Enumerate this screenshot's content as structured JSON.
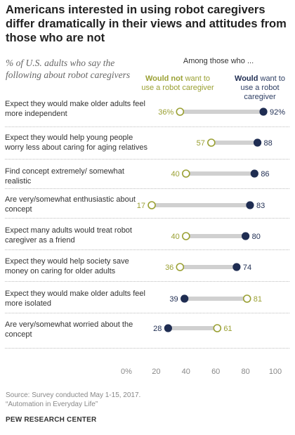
{
  "title": "Americans interested in using robot caregivers differ dramatically in their views and attitudes from those who are not",
  "subtitle": "% of U.S. adults who say the following about robot caregivers",
  "header": "Among those who ...",
  "legend": {
    "not_bold": "Would not",
    "not_rest": "want to use a robot caregiver",
    "would_bold": "Would",
    "would_rest": "want to use a robot caregiver"
  },
  "colors": {
    "would_not": "#9aa033",
    "would": "#1f2d52",
    "track": "#d0d0d0"
  },
  "chart_data": {
    "type": "dot",
    "xlim": [
      0,
      100
    ],
    "xticks": [
      "0%",
      "20",
      "40",
      "60",
      "80",
      "100"
    ],
    "series": [
      {
        "name": "Would not want to use a robot caregiver",
        "style": "hollow"
      },
      {
        "name": "Would want to use a robot caregiver",
        "style": "filled"
      }
    ],
    "rows": [
      {
        "label": "Expect they would make older adults feel more independent",
        "would_not": 36,
        "would": 92,
        "not_text": "36%",
        "would_text": "92%"
      },
      {
        "label": "Expect they would help young people worry less about caring for aging relatives",
        "would_not": 57,
        "would": 88,
        "not_text": "57",
        "would_text": "88"
      },
      {
        "label": "Find concept extremely/ somewhat realistic",
        "would_not": 40,
        "would": 86,
        "not_text": "40",
        "would_text": "86"
      },
      {
        "label": "Are very/somewhat enthusiastic about concept",
        "would_not": 17,
        "would": 83,
        "not_text": "17",
        "would_text": "83"
      },
      {
        "label": "Expect many adults would treat robot caregiver as a friend",
        "would_not": 40,
        "would": 80,
        "not_text": "40",
        "would_text": "80"
      },
      {
        "label": "Expect they would help society save money on caring for older adults",
        "would_not": 36,
        "would": 74,
        "not_text": "36",
        "would_text": "74"
      },
      {
        "label": "Expect they would make older adults feel more isolated",
        "would_not": 81,
        "would": 39,
        "not_text": "81",
        "would_text": "39"
      },
      {
        "label": "Are very/somewhat worried about the concept",
        "would_not": 61,
        "would": 28,
        "not_text": "61",
        "would_text": "28"
      }
    ]
  },
  "source": "Source: Survey conducted May 1-15, 2017.",
  "report": "“Automation in Everyday Life”",
  "brand": "PEW RESEARCH CENTER"
}
